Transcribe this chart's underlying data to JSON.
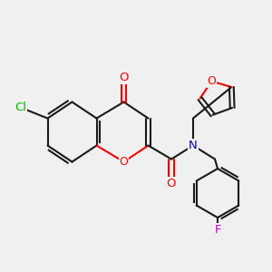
{
  "background_color": "#f0f0f0",
  "bond_color": "#1a1a1a",
  "colors": {
    "O": "#ff0000",
    "N": "#0000cc",
    "Cl": "#00bb00",
    "F": "#cc00cc",
    "C": "#1a1a1a"
  },
  "lw": 1.5,
  "fs": 9.5
}
